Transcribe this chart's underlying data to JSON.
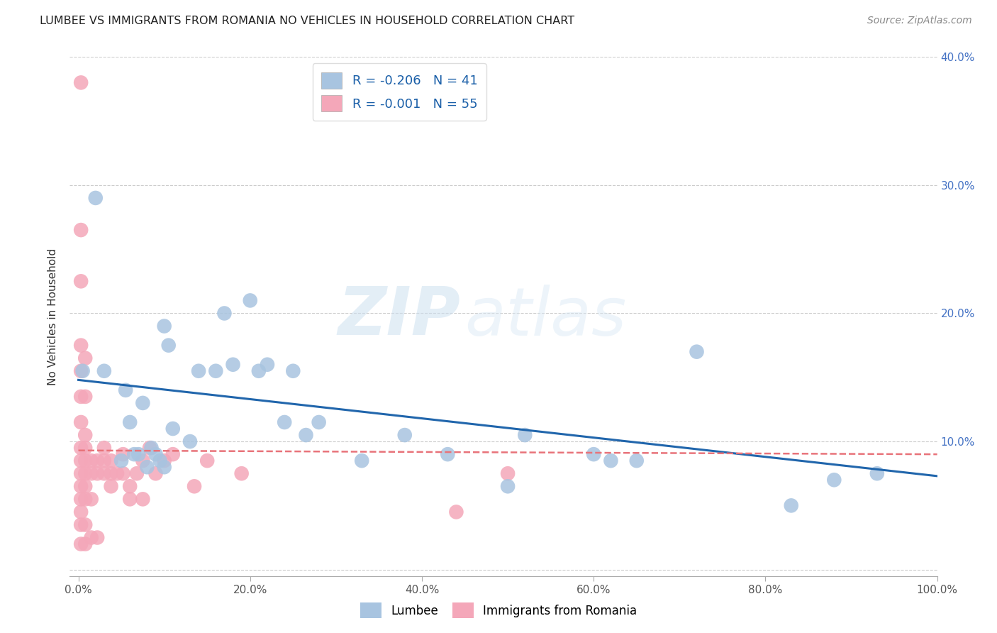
{
  "title": "LUMBEE VS IMMIGRANTS FROM ROMANIA NO VEHICLES IN HOUSEHOLD CORRELATION CHART",
  "source": "Source: ZipAtlas.com",
  "ylabel": "No Vehicles in Household",
  "xlabel": "",
  "xlim": [
    -0.01,
    1.0
  ],
  "ylim": [
    -0.005,
    0.4
  ],
  "xticks": [
    0.0,
    0.2,
    0.4,
    0.6,
    0.8,
    1.0
  ],
  "xticklabels": [
    "0.0%",
    "20.0%",
    "40.0%",
    "60.0%",
    "80.0%",
    "100.0%"
  ],
  "yticks": [
    0.0,
    0.1,
    0.2,
    0.3,
    0.4
  ],
  "yticklabels_right": [
    "",
    "10.0%",
    "20.0%",
    "30.0%",
    "40.0%"
  ],
  "legend_r1": "R = -0.206",
  "legend_n1": "N = 41",
  "legend_r2": "R = -0.001",
  "legend_n2": "N = 55",
  "lumbee_color": "#a8c4e0",
  "romania_color": "#f4a7b9",
  "lumbee_trend_color": "#2166ac",
  "romania_trend_color": "#e8737a",
  "watermark_zip": "ZIP",
  "watermark_atlas": "atlas",
  "lumbee_trend_x0": 0.0,
  "lumbee_trend_y0": 0.148,
  "lumbee_trend_x1": 1.0,
  "lumbee_trend_y1": 0.073,
  "romania_trend_x0": 0.0,
  "romania_trend_y0": 0.093,
  "romania_trend_x1": 1.0,
  "romania_trend_y1": 0.09,
  "lumbee_x": [
    0.005,
    0.02,
    0.03,
    0.05,
    0.055,
    0.06,
    0.065,
    0.07,
    0.075,
    0.08,
    0.085,
    0.09,
    0.095,
    0.1,
    0.1,
    0.105,
    0.11,
    0.13,
    0.14,
    0.16,
    0.17,
    0.18,
    0.2,
    0.21,
    0.22,
    0.24,
    0.25,
    0.265,
    0.28,
    0.33,
    0.38,
    0.43,
    0.5,
    0.52,
    0.6,
    0.62,
    0.65,
    0.72,
    0.83,
    0.88,
    0.93
  ],
  "lumbee_y": [
    0.155,
    0.29,
    0.155,
    0.085,
    0.14,
    0.115,
    0.09,
    0.09,
    0.13,
    0.08,
    0.095,
    0.09,
    0.085,
    0.19,
    0.08,
    0.175,
    0.11,
    0.1,
    0.155,
    0.155,
    0.2,
    0.16,
    0.21,
    0.155,
    0.16,
    0.115,
    0.155,
    0.105,
    0.115,
    0.085,
    0.105,
    0.09,
    0.065,
    0.105,
    0.09,
    0.085,
    0.085,
    0.17,
    0.05,
    0.07,
    0.075
  ],
  "romania_x": [
    0.003,
    0.003,
    0.003,
    0.003,
    0.003,
    0.003,
    0.003,
    0.003,
    0.003,
    0.003,
    0.003,
    0.003,
    0.003,
    0.003,
    0.003,
    0.008,
    0.008,
    0.008,
    0.008,
    0.008,
    0.008,
    0.008,
    0.008,
    0.008,
    0.008,
    0.015,
    0.015,
    0.015,
    0.015,
    0.022,
    0.022,
    0.022,
    0.03,
    0.03,
    0.03,
    0.038,
    0.038,
    0.038,
    0.045,
    0.052,
    0.052,
    0.06,
    0.06,
    0.068,
    0.075,
    0.075,
    0.083,
    0.09,
    0.1,
    0.11,
    0.135,
    0.15,
    0.19,
    0.44,
    0.5
  ],
  "romania_y": [
    0.38,
    0.265,
    0.225,
    0.175,
    0.155,
    0.135,
    0.115,
    0.095,
    0.085,
    0.075,
    0.065,
    0.055,
    0.045,
    0.035,
    0.02,
    0.165,
    0.135,
    0.105,
    0.095,
    0.085,
    0.075,
    0.065,
    0.055,
    0.035,
    0.02,
    0.085,
    0.075,
    0.055,
    0.025,
    0.085,
    0.075,
    0.025,
    0.095,
    0.085,
    0.075,
    0.085,
    0.075,
    0.065,
    0.075,
    0.09,
    0.075,
    0.055,
    0.065,
    0.075,
    0.085,
    0.055,
    0.095,
    0.075,
    0.085,
    0.09,
    0.065,
    0.085,
    0.075,
    0.045,
    0.075
  ]
}
